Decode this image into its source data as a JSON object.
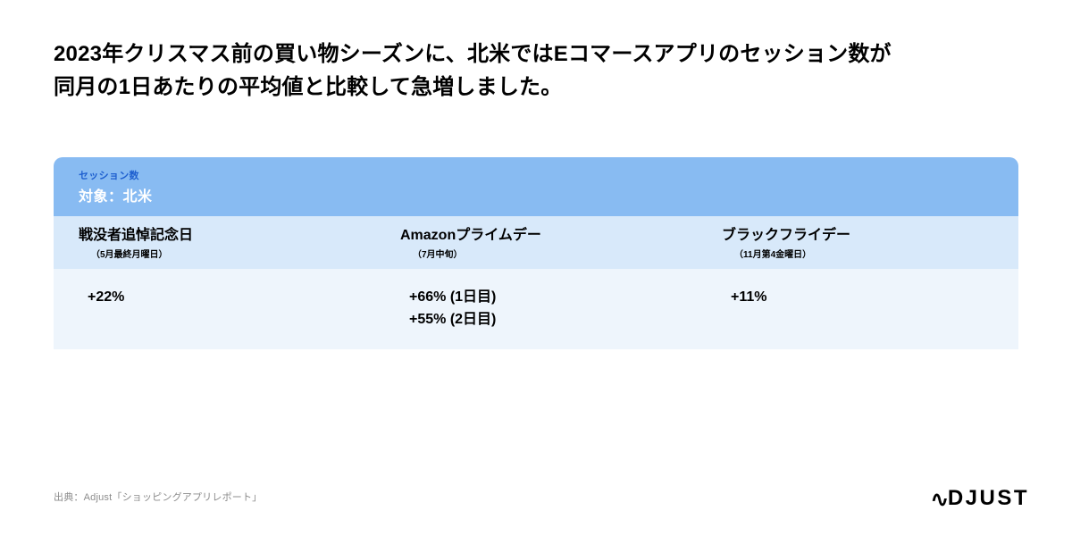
{
  "headline": {
    "line1": "2023年クリスマス前の買い物シーズンに、北米ではEコマースアプリのセッション数が",
    "line2": "同月の1日あたりの平均値と比較して急増しました。"
  },
  "table": {
    "metric_label": "セッション数",
    "region_label": "対象：北米",
    "colors": {
      "head_bg": "#88bbf2",
      "colrow_bg": "#d8e9fa",
      "datarow_bg": "#eef5fc",
      "metric_label_color": "#1e5fcf"
    },
    "columns": [
      {
        "title": "戦没者追悼記念日",
        "subtitle": "（5月最終月曜日）"
      },
      {
        "title": "Amazonプライムデー",
        "subtitle": "（7月中旬）"
      },
      {
        "title": "ブラックフライデー",
        "subtitle": "（11月第4金曜日）"
      }
    ],
    "values": [
      {
        "lines": [
          "+22%"
        ]
      },
      {
        "lines": [
          "+66% (1日目)",
          "+55% (2日目)"
        ]
      },
      {
        "lines": [
          "+11%"
        ]
      }
    ]
  },
  "footer": {
    "source": "出典：Adjust「ショッピングアプリレポート」"
  },
  "brand": {
    "text": "DJUST"
  }
}
